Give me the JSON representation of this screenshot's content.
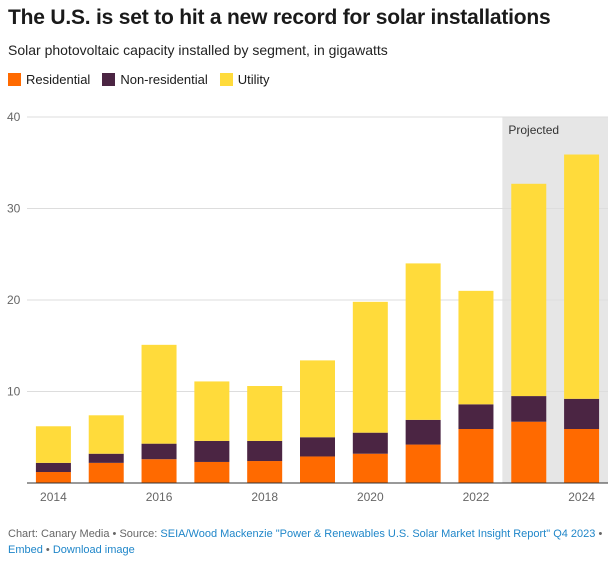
{
  "title": "The U.S. is set to hit a new record for solar installations",
  "subtitle": "Solar photovoltaic capacity installed by segment, in gigawatts",
  "footer": {
    "prefix": "Chart: Canary Media • Source: ",
    "source_link": "SEIA/Wood Mackenzie \"Power & Renewables U.S. Solar Market Insight Report\" Q4 2023",
    "separator": " • ",
    "embed": "Embed",
    "download": "Download image"
  },
  "colors": {
    "residential": "#ff6a00",
    "non_residential": "#4b2543",
    "utility": "#ffdb3b",
    "projected_bg": "#e6e6e6",
    "grid": "#dddddd"
  },
  "chart_data": {
    "type": "bar",
    "stacked": true,
    "title": "The U.S. is set to hit a new record for solar installations",
    "subtitle": "Solar photovoltaic capacity installed by segment, in gigawatts",
    "categories": [
      "2014",
      "2015",
      "2016",
      "2017",
      "2018",
      "2019",
      "2020",
      "2021",
      "2022",
      "2023",
      "2024"
    ],
    "x_tick_labels": [
      "2014",
      "2016",
      "2018",
      "2020",
      "2022",
      "2024"
    ],
    "y_ticks": [
      10,
      20,
      30,
      40
    ],
    "ylim": [
      0,
      40
    ],
    "grid": true,
    "legend_position": "top-left",
    "projected_label": "Projected",
    "projected_categories": [
      "2023",
      "2024"
    ],
    "series": [
      {
        "name": "Residential",
        "color": "#ff6a00",
        "values": [
          1.2,
          2.2,
          2.6,
          2.3,
          2.4,
          2.9,
          3.2,
          4.2,
          5.9,
          6.7,
          5.9
        ]
      },
      {
        "name": "Non-residential",
        "color": "#4b2543",
        "values": [
          1.0,
          1.0,
          1.7,
          2.3,
          2.2,
          2.1,
          2.3,
          2.7,
          2.7,
          2.8,
          3.3
        ]
      },
      {
        "name": "Utility",
        "color": "#ffdb3b",
        "values": [
          4.0,
          4.2,
          10.8,
          6.5,
          6.0,
          8.4,
          14.3,
          17.1,
          12.4,
          23.2,
          26.7
        ]
      }
    ]
  }
}
